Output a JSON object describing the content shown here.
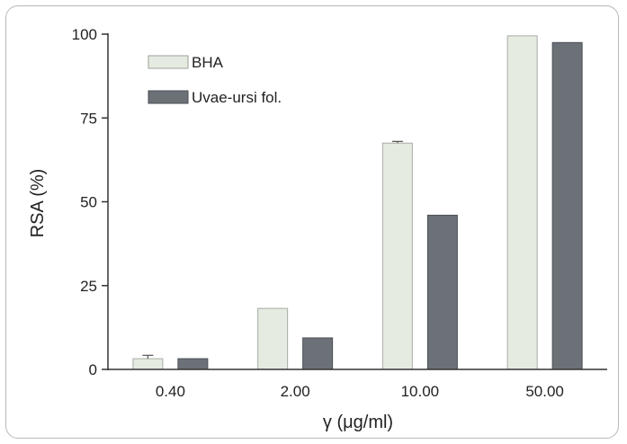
{
  "chart_data": {
    "type": "bar",
    "title": "",
    "xlabel": "γ (μg/ml)",
    "ylabel": "RSA (%)",
    "categories": [
      "0.40",
      "2.00",
      "10.00",
      "50.00"
    ],
    "ylim": [
      0,
      100
    ],
    "yticks": [
      0,
      25,
      50,
      75,
      100
    ],
    "legend_position": "top-left",
    "grid": false,
    "series": [
      {
        "name": "BHA",
        "values": [
          3.2,
          18.2,
          67.5,
          99.5
        ],
        "errors": [
          1.0,
          0,
          0.5,
          0
        ],
        "color": "#e6ebe2"
      },
      {
        "name": "Uvae-ursi fol.",
        "values": [
          3.2,
          9.4,
          46.0,
          97.5
        ],
        "errors": [
          0,
          0,
          0,
          0
        ],
        "color": "#6c7178"
      }
    ]
  }
}
